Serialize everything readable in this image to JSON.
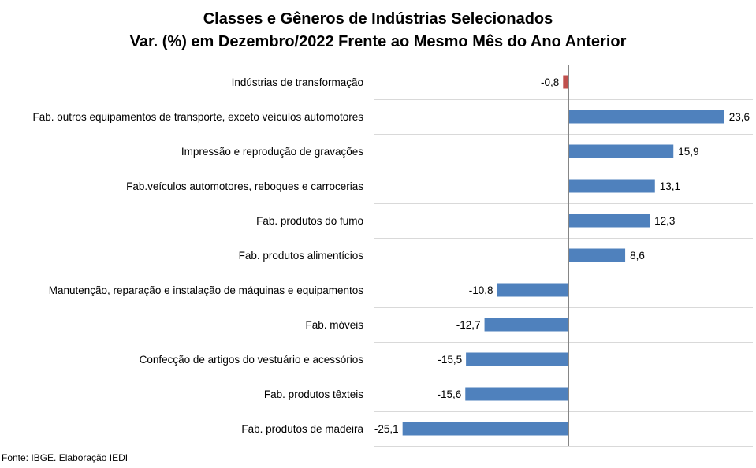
{
  "chart_data": {
    "type": "bar",
    "orientation": "horizontal",
    "title": "Classes e Gêneros de Indústrias Selecionados",
    "subtitle": "Var. (%) em Dezembro/2022 Frente ao Mesmo Mês do Ano Anterior",
    "categories": [
      "Indústrias de transformação",
      "Fab. outros equipamentos de transporte, exceto veículos automotores",
      "Impressão e reprodução de gravações",
      "Fab.veículos automotores, reboques e carrocerias",
      "Fab. produtos do fumo",
      "Fab. produtos alimentícios",
      "Manutenção, reparação e instalação de máquinas e equipamentos",
      "Fab. móveis",
      "Confecção de artigos do vestuário e acessórios",
      "Fab. produtos têxteis",
      "Fab. produtos de madeira"
    ],
    "values": [
      -0.8,
      23.6,
      15.9,
      13.1,
      12.3,
      8.6,
      -10.8,
      -12.7,
      -15.5,
      -15.6,
      -25.1
    ],
    "value_labels": [
      "-0,8",
      "23,6",
      "15,9",
      "13,1",
      "12,3",
      "8,6",
      "-10,8",
      "-12,7",
      "-15,5",
      "-15,6",
      "-25,1"
    ],
    "xlim": [
      -30,
      30
    ],
    "xlabel": "",
    "ylabel": "",
    "grid": "horizontal",
    "legend": "none",
    "colors": {
      "positive": "#4f81bd",
      "negative_highlight": "#c0504d",
      "grid": "#d9d9d9",
      "axis": "#868686"
    },
    "highlight_index": 0
  },
  "source_note": "Fonte: IBGE. Elaboração IEDI"
}
